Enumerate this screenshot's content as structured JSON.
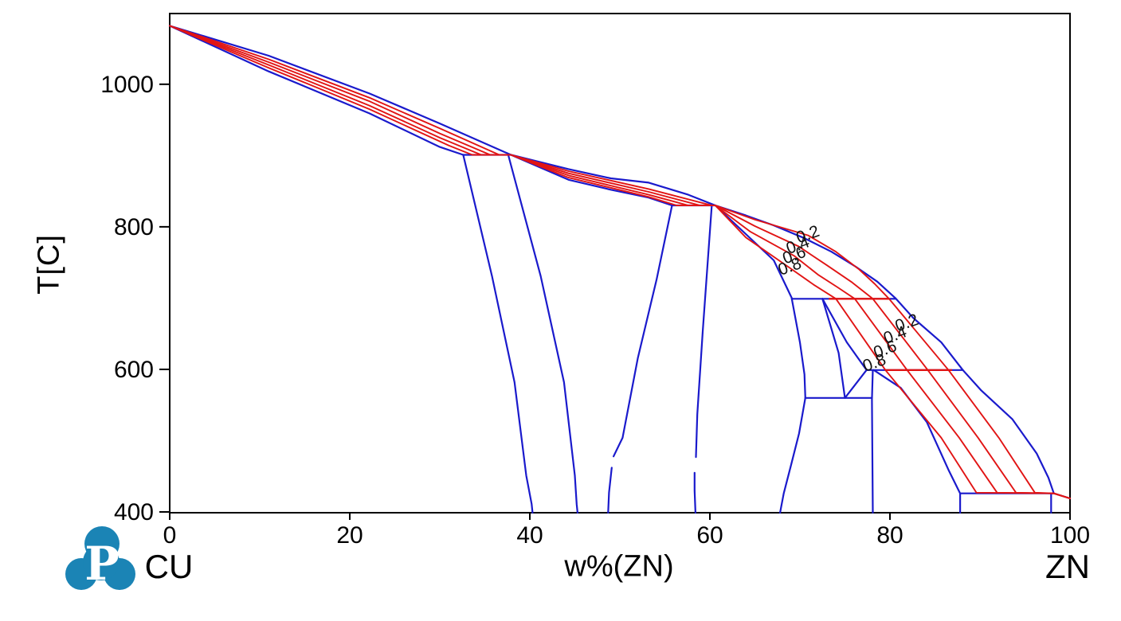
{
  "page": {
    "background": "#ffffff",
    "description": "Cu-Zn binary phase diagram with solid-fraction isolines"
  },
  "axis_titles": {
    "y": "T[C]",
    "x": "w%(ZN)"
  },
  "end_labels": {
    "left": "CU",
    "right": "ZN"
  },
  "logo": {
    "name": "pandat-logo",
    "letter": "P",
    "color": "#1b84b5",
    "letter_color": "#ffffff"
  },
  "chart_data": {
    "type": "line",
    "title": "",
    "xlabel": "w%(ZN)",
    "ylabel": "T[C]",
    "x_ticks": [
      0,
      20,
      40,
      60,
      80,
      100
    ],
    "y_ticks": [
      400,
      600,
      800,
      1000
    ],
    "x_range": [
      0,
      100
    ],
    "y_range": [
      399,
      1103
    ],
    "colors": {
      "boundary": "#1a1acc",
      "isoline": "#e11414",
      "axis": "#000000",
      "label": "#111111"
    },
    "phase_boundaries": [
      {
        "name": "liquidus",
        "points": [
          [
            0,
            1082
          ],
          [
            11,
            1040
          ],
          [
            22.2,
            987
          ],
          [
            30,
            945
          ],
          [
            37.9,
            901
          ],
          [
            44.3,
            881
          ],
          [
            49,
            868
          ],
          [
            53.2,
            862
          ],
          [
            57.6,
            845
          ],
          [
            60.6,
            830
          ],
          [
            64,
            816
          ],
          [
            67.1,
            802
          ],
          [
            70.5,
            784
          ],
          [
            73.5,
            765
          ],
          [
            76.2,
            744
          ],
          [
            78.6,
            723
          ],
          [
            80.6,
            700
          ],
          [
            82.6,
            672
          ],
          [
            85.7,
            638
          ],
          [
            88.1,
            599
          ],
          [
            90.1,
            571
          ],
          [
            93.6,
            530
          ],
          [
            96.3,
            482
          ],
          [
            97.6,
            448
          ],
          [
            98.2,
            426
          ],
          [
            100,
            419
          ]
        ]
      },
      {
        "name": "alpha-solidus",
        "points": [
          [
            0,
            1082
          ],
          [
            11,
            1018
          ],
          [
            22.2,
            959
          ],
          [
            30,
            912
          ],
          [
            32.6,
            901
          ]
        ]
      },
      {
        "name": "peritectic-900",
        "points": [
          [
            32.6,
            901
          ],
          [
            37.9,
            901
          ]
        ]
      },
      {
        "name": "alpha-alphabeta-boundary",
        "points": [
          [
            32.6,
            901
          ],
          [
            35.8,
            731
          ],
          [
            38.3,
            582
          ],
          [
            39.6,
            451
          ],
          [
            40.2,
            411
          ],
          [
            40.3,
            399
          ]
        ]
      },
      {
        "name": "alphabeta-beta-boundary",
        "points": [
          [
            37.6,
            901
          ],
          [
            41.2,
            731
          ],
          [
            43.8,
            582
          ],
          [
            45.0,
            451
          ],
          [
            45.2,
            411
          ],
          [
            45.3,
            399
          ]
        ]
      },
      {
        "name": "beta-solidus",
        "points": [
          [
            37.9,
            901
          ],
          [
            44.3,
            866
          ],
          [
            49,
            852
          ],
          [
            53.2,
            841
          ],
          [
            55.8,
            830
          ]
        ]
      },
      {
        "name": "peritectic-830",
        "points": [
          [
            55.8,
            830
          ],
          [
            60.6,
            830
          ]
        ]
      },
      {
        "name": "beta-betagamma-boundary-upper",
        "points": [
          [
            55.8,
            830
          ],
          [
            54.1,
            727
          ],
          [
            52.0,
            616
          ],
          [
            50.3,
            504
          ],
          [
            49.3,
            478
          ]
        ]
      },
      {
        "name": "beta-betagamma-boundary-lower",
        "points": [
          [
            49.1,
            462
          ],
          [
            48.8,
            427
          ],
          [
            48.7,
            399
          ]
        ]
      },
      {
        "name": "gamma-left-boundary-upper",
        "points": [
          [
            60.2,
            829
          ],
          [
            59.2,
            653
          ],
          [
            58.6,
            537
          ],
          [
            58.45,
            477
          ]
        ]
      },
      {
        "name": "gamma-left-boundary-lower",
        "points": [
          [
            58.3,
            455
          ],
          [
            58.3,
            430
          ],
          [
            58.4,
            399
          ]
        ]
      },
      {
        "name": "gamma-right-boundary-830-700",
        "points": [
          [
            60.6,
            830
          ],
          [
            67.1,
            753
          ],
          [
            69.1,
            700
          ]
        ]
      },
      {
        "name": "peritectic-700",
        "points": [
          [
            69.1,
            699
          ],
          [
            80.6,
            699
          ]
        ]
      },
      {
        "name": "gamma-right-boundary-700-560",
        "points": [
          [
            69.1,
            699
          ],
          [
            70.0,
            638
          ],
          [
            70.5,
            593
          ],
          [
            70.6,
            560
          ]
        ]
      },
      {
        "name": "gamma-right-boundary-560-400",
        "points": [
          [
            70.6,
            560
          ],
          [
            69.9,
            510
          ],
          [
            69.0,
            465
          ],
          [
            68.2,
            426
          ],
          [
            67.8,
            399
          ]
        ]
      },
      {
        "name": "delta-left-boundary",
        "points": [
          [
            72.5,
            699
          ],
          [
            74.3,
            623
          ],
          [
            75.0,
            560
          ]
        ]
      },
      {
        "name": "delta-right-boundary",
        "points": [
          [
            72.5,
            699
          ],
          [
            75.2,
            638
          ],
          [
            77.4,
            599
          ]
        ]
      },
      {
        "name": "delta-deltaeps-boundary",
        "points": [
          [
            77.4,
            599
          ],
          [
            75.0,
            560
          ]
        ]
      },
      {
        "name": "peritectic-600",
        "points": [
          [
            77.4,
            599
          ],
          [
            88.1,
            599
          ]
        ]
      },
      {
        "name": "eutectoid-560",
        "points": [
          [
            70.6,
            560
          ],
          [
            78.0,
            560
          ]
        ]
      },
      {
        "name": "epsilon-left-boundary",
        "points": [
          [
            78.1,
            599
          ],
          [
            78.0,
            558
          ],
          [
            78.1,
            399
          ]
        ]
      },
      {
        "name": "epsilon-right-boundary",
        "points": [
          [
            78.2,
            599
          ],
          [
            81.2,
            574
          ],
          [
            84.1,
            526
          ],
          [
            86.5,
            459
          ],
          [
            87.8,
            426
          ]
        ]
      },
      {
        "name": "peritectic-420",
        "points": [
          [
            87.8,
            426
          ],
          [
            98.2,
            426
          ]
        ]
      },
      {
        "name": "epsilon-eta-boundary",
        "points": [
          [
            87.8,
            426
          ],
          [
            87.8,
            399
          ]
        ]
      },
      {
        "name": "eta-left-boundary",
        "points": [
          [
            97.9,
            426
          ],
          [
            97.9,
            399
          ]
        ]
      }
    ],
    "fraction_isolines": [
      {
        "fraction": 0.2,
        "points": [
          [
            0,
            1082
          ],
          [
            11,
            1035
          ],
          [
            22.2,
            981
          ],
          [
            30,
            938
          ],
          [
            36.6,
            901
          ],
          [
            37.9,
            901
          ],
          [
            44.3,
            878
          ],
          [
            53.2,
            853
          ],
          [
            60.2,
            830
          ],
          [
            60.6,
            830
          ],
          [
            65,
            810
          ],
          [
            70.9,
            788
          ],
          [
            74,
            765
          ],
          [
            76.5,
            741
          ],
          [
            78.3,
            720
          ],
          [
            79.9,
            699
          ],
          [
            86.5,
            599
          ],
          [
            92.1,
            504
          ],
          [
            96.1,
            427
          ],
          [
            98.2,
            426
          ],
          [
            100,
            419
          ]
        ]
      },
      {
        "fraction": 0.4,
        "points": [
          [
            0,
            1082
          ],
          [
            11,
            1031
          ],
          [
            22.2,
            976
          ],
          [
            30,
            931
          ],
          [
            35.6,
            901
          ],
          [
            37.9,
            901
          ],
          [
            44.3,
            875
          ],
          [
            53.2,
            849
          ],
          [
            58.9,
            830
          ],
          [
            60.6,
            830
          ],
          [
            65,
            801
          ],
          [
            69.8,
            773
          ],
          [
            73,
            746
          ],
          [
            75.8,
            722
          ],
          [
            78.1,
            699
          ],
          [
            84.2,
            599
          ],
          [
            89.8,
            504
          ],
          [
            94.0,
            427
          ],
          [
            98.2,
            426
          ],
          [
            100,
            419
          ]
        ]
      },
      {
        "fraction": 0.6,
        "points": [
          [
            0,
            1082
          ],
          [
            11,
            1027
          ],
          [
            22.2,
            970
          ],
          [
            30,
            925
          ],
          [
            34.6,
            901
          ],
          [
            37.9,
            901
          ],
          [
            44.3,
            872
          ],
          [
            53.2,
            845
          ],
          [
            57.6,
            830
          ],
          [
            60.6,
            830
          ],
          [
            64.5,
            793
          ],
          [
            69.4,
            759
          ],
          [
            72,
            733
          ],
          [
            74.2,
            715
          ],
          [
            76.1,
            699
          ],
          [
            81.9,
            599
          ],
          [
            87.7,
            504
          ],
          [
            91.9,
            427
          ],
          [
            98.2,
            426
          ],
          [
            100,
            419
          ]
        ]
      },
      {
        "fraction": 0.8,
        "points": [
          [
            0,
            1082
          ],
          [
            11,
            1023
          ],
          [
            22.2,
            965
          ],
          [
            31,
            914
          ],
          [
            33.6,
            901
          ],
          [
            37.9,
            901
          ],
          [
            44.3,
            869
          ],
          [
            53.2,
            842
          ],
          [
            56.3,
            830
          ],
          [
            60.6,
            830
          ],
          [
            64,
            785
          ],
          [
            68.8,
            743
          ],
          [
            71.5,
            719
          ],
          [
            74.0,
            699
          ],
          [
            79.5,
            599
          ],
          [
            85.7,
            504
          ],
          [
            89.6,
            427
          ],
          [
            98.2,
            426
          ],
          [
            100,
            419
          ]
        ]
      }
    ],
    "invariant_red_overlays": [
      {
        "name": "red-over-700-line",
        "points": [
          [
            73.2,
            699
          ],
          [
            79.9,
            699
          ]
        ]
      },
      {
        "name": "red-over-600-line",
        "points": [
          [
            79.5,
            599
          ],
          [
            86.9,
            599
          ]
        ]
      }
    ],
    "isoline_labels": [
      {
        "text": "0.2",
        "w": 70.9,
        "T": 788,
        "rotation": -20
      },
      {
        "text": "0.4",
        "w": 69.8,
        "T": 773,
        "rotation": -20
      },
      {
        "text": "0.6",
        "w": 69.4,
        "T": 759,
        "rotation": -20
      },
      {
        "text": "0.8",
        "w": 68.9,
        "T": 743,
        "rotation": -20
      },
      {
        "text": "0.2",
        "w": 81.9,
        "T": 664,
        "rotation": -20
      },
      {
        "text": "0.4",
        "w": 80.6,
        "T": 647,
        "rotation": -20
      },
      {
        "text": "0.6",
        "w": 79.5,
        "T": 627,
        "rotation": -20
      },
      {
        "text": "0.8",
        "w": 78.3,
        "T": 608,
        "rotation": -20
      }
    ]
  }
}
